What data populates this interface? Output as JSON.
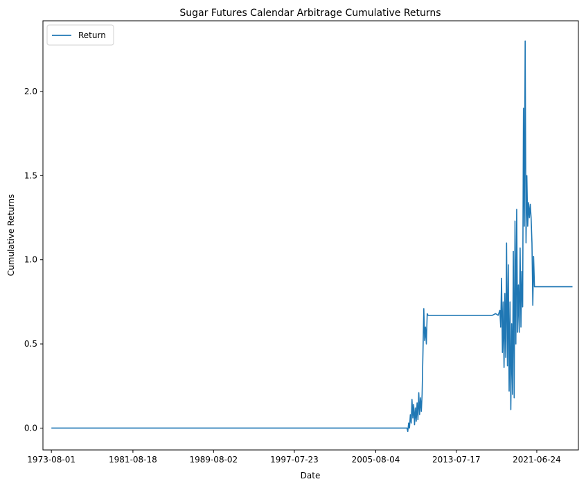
{
  "chart_data": {
    "type": "line",
    "title": "Sugar Futures Calendar Arbitrage Cumulative Returns",
    "xlabel": "Date",
    "ylabel": "Cumulative Returns",
    "xlim": [
      "1972-10-01",
      "2025-08-01"
    ],
    "ylim": [
      -0.13,
      2.42
    ],
    "x_ticks": [
      "1973-08-01",
      "1981-08-18",
      "1989-08-02",
      "1997-07-23",
      "2005-08-04",
      "2013-07-17",
      "2021-06-24"
    ],
    "y_ticks": [
      0.0,
      0.5,
      1.0,
      1.5,
      2.0
    ],
    "y_tick_labels": [
      "0.0",
      "0.5",
      "1.0",
      "1.5",
      "2.0"
    ],
    "grid": false,
    "legend": {
      "position": "top-left",
      "entries": [
        "Return"
      ]
    },
    "color": "#1f77b4",
    "series": [
      {
        "name": "Return",
        "points": [
          [
            "1973-08-01",
            0.0
          ],
          [
            "2008-09-01",
            0.0
          ],
          [
            "2008-10-01",
            -0.02
          ],
          [
            "2008-11-01",
            0.03
          ],
          [
            "2008-12-01",
            0.0
          ],
          [
            "2009-01-01",
            0.08
          ],
          [
            "2009-02-01",
            0.03
          ],
          [
            "2009-03-01",
            0.17
          ],
          [
            "2009-04-01",
            0.06
          ],
          [
            "2009-05-01",
            0.14
          ],
          [
            "2009-06-01",
            0.02
          ],
          [
            "2009-07-01",
            0.12
          ],
          [
            "2009-08-01",
            0.04
          ],
          [
            "2009-09-01",
            0.15
          ],
          [
            "2009-10-01",
            0.05
          ],
          [
            "2009-11-01",
            0.21
          ],
          [
            "2009-12-01",
            0.08
          ],
          [
            "2010-01-01",
            0.18
          ],
          [
            "2010-02-01",
            0.1
          ],
          [
            "2010-03-01",
            0.2
          ],
          [
            "2010-04-01",
            0.45
          ],
          [
            "2010-05-01",
            0.71
          ],
          [
            "2010-06-01",
            0.52
          ],
          [
            "2010-07-01",
            0.6
          ],
          [
            "2010-08-01",
            0.5
          ],
          [
            "2010-09-01",
            0.68
          ],
          [
            "2010-10-01",
            0.67
          ],
          [
            "2017-02-01",
            0.67
          ],
          [
            "2017-06-01",
            0.68
          ],
          [
            "2017-09-01",
            0.67
          ],
          [
            "2017-11-01",
            0.7
          ],
          [
            "2017-12-01",
            0.6
          ],
          [
            "2018-01-01",
            0.89
          ],
          [
            "2018-02-01",
            0.45
          ],
          [
            "2018-03-01",
            0.75
          ],
          [
            "2018-04-01",
            0.36
          ],
          [
            "2018-05-01",
            0.8
          ],
          [
            "2018-06-01",
            0.42
          ],
          [
            "2018-07-01",
            1.1
          ],
          [
            "2018-08-01",
            0.37
          ],
          [
            "2018-09-01",
            0.97
          ],
          [
            "2018-10-01",
            0.22
          ],
          [
            "2018-11-01",
            0.75
          ],
          [
            "2018-12-01",
            0.11
          ],
          [
            "2019-01-01",
            0.62
          ],
          [
            "2019-02-01",
            0.2
          ],
          [
            "2019-03-01",
            1.05
          ],
          [
            "2019-04-01",
            0.18
          ],
          [
            "2019-05-01",
            1.23
          ],
          [
            "2019-06-01",
            0.5
          ],
          [
            "2019-07-01",
            1.3
          ],
          [
            "2019-08-01",
            0.57
          ],
          [
            "2019-09-01",
            0.85
          ],
          [
            "2019-10-01",
            0.57
          ],
          [
            "2019-11-01",
            1.07
          ],
          [
            "2019-12-01",
            0.6
          ],
          [
            "2020-01-01",
            0.93
          ],
          [
            "2020-02-01",
            0.72
          ],
          [
            "2020-03-01",
            1.9
          ],
          [
            "2020-04-01",
            1.2
          ],
          [
            "2020-05-01",
            2.3
          ],
          [
            "2020-06-01",
            1.1
          ],
          [
            "2020-07-01",
            1.5
          ],
          [
            "2020-08-01",
            1.2
          ],
          [
            "2020-09-01",
            1.34
          ],
          [
            "2020-10-01",
            1.25
          ],
          [
            "2020-11-01",
            1.33
          ],
          [
            "2020-12-01",
            1.25
          ],
          [
            "2021-01-01",
            1.1
          ],
          [
            "2021-02-01",
            0.73
          ],
          [
            "2021-03-01",
            1.02
          ],
          [
            "2021-04-01",
            0.84
          ],
          [
            "2025-01-01",
            0.84
          ]
        ]
      }
    ]
  }
}
